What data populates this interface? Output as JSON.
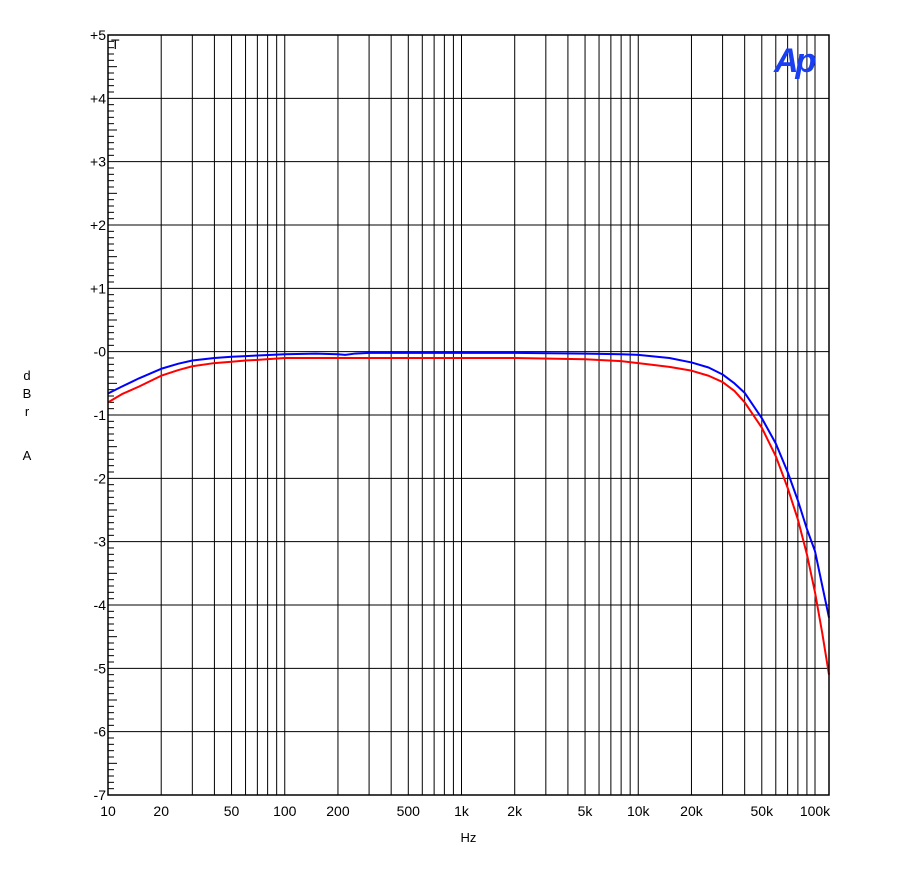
{
  "chart_data": {
    "type": "line",
    "xlabel": "Hz",
    "ylabel_chars": [
      "d",
      "B",
      "r",
      "A"
    ],
    "x_scale": "log",
    "xlim": [
      10,
      120000
    ],
    "ylim": [
      -7,
      5
    ],
    "grid": true,
    "marker": "T",
    "logo": "Ap",
    "x_ticks": [
      {
        "value": 10,
        "label": "10"
      },
      {
        "value": 20,
        "label": "20"
      },
      {
        "value": 50,
        "label": "50"
      },
      {
        "value": 100,
        "label": "100"
      },
      {
        "value": 200,
        "label": "200"
      },
      {
        "value": 500,
        "label": "500"
      },
      {
        "value": 1000,
        "label": "1k"
      },
      {
        "value": 2000,
        "label": "2k"
      },
      {
        "value": 5000,
        "label": "5k"
      },
      {
        "value": 10000,
        "label": "10k"
      },
      {
        "value": 20000,
        "label": "20k"
      },
      {
        "value": 50000,
        "label": "50k"
      },
      {
        "value": 100000,
        "label": "100k"
      }
    ],
    "y_ticks": [
      {
        "value": 5,
        "label": "+5"
      },
      {
        "value": 4,
        "label": "+4"
      },
      {
        "value": 3,
        "label": "+3"
      },
      {
        "value": 2,
        "label": "+2"
      },
      {
        "value": 1,
        "label": "+1"
      },
      {
        "value": 0,
        "label": "-0"
      },
      {
        "value": -1,
        "label": "-1"
      },
      {
        "value": -2,
        "label": "-2"
      },
      {
        "value": -3,
        "label": "-3"
      },
      {
        "value": -4,
        "label": "-4"
      },
      {
        "value": -5,
        "label": "-5"
      },
      {
        "value": -6,
        "label": "-6"
      },
      {
        "value": -7,
        "label": "-7"
      }
    ],
    "series": [
      {
        "color": "#0000ff",
        "x": [
          10,
          12,
          15,
          20,
          25,
          30,
          40,
          50,
          60,
          70,
          100,
          150,
          200,
          220,
          250,
          300,
          500,
          1000,
          2000,
          5000,
          8000,
          10000,
          15000,
          20000,
          25000,
          30000,
          35000,
          40000,
          50000,
          60000,
          70000,
          80000,
          90000,
          100000,
          110000,
          120000
        ],
        "y": [
          -0.66,
          -0.55,
          -0.42,
          -0.27,
          -0.19,
          -0.14,
          -0.1,
          -0.08,
          -0.07,
          -0.06,
          -0.04,
          -0.03,
          -0.04,
          -0.05,
          -0.03,
          -0.02,
          -0.02,
          -0.02,
          -0.02,
          -0.03,
          -0.04,
          -0.05,
          -0.1,
          -0.17,
          -0.25,
          -0.36,
          -0.5,
          -0.65,
          -1.05,
          -1.45,
          -1.9,
          -2.35,
          -2.8,
          -3.15,
          -3.7,
          -4.2
        ]
      },
      {
        "color": "#ff0000",
        "x": [
          10,
          12,
          15,
          20,
          25,
          30,
          40,
          50,
          60,
          70,
          100,
          150,
          200,
          300,
          500,
          1000,
          2000,
          5000,
          8000,
          10000,
          15000,
          20000,
          25000,
          30000,
          35000,
          40000,
          50000,
          60000,
          70000,
          80000,
          90000,
          100000,
          110000,
          120000
        ],
        "y": [
          -0.8,
          -0.67,
          -0.55,
          -0.38,
          -0.29,
          -0.23,
          -0.18,
          -0.16,
          -0.14,
          -0.13,
          -0.1,
          -0.1,
          -0.1,
          -0.1,
          -0.1,
          -0.1,
          -0.1,
          -0.12,
          -0.15,
          -0.18,
          -0.24,
          -0.3,
          -0.38,
          -0.48,
          -0.62,
          -0.8,
          -1.2,
          -1.65,
          -2.15,
          -2.65,
          -3.2,
          -3.8,
          -4.45,
          -5.1
        ]
      }
    ]
  }
}
